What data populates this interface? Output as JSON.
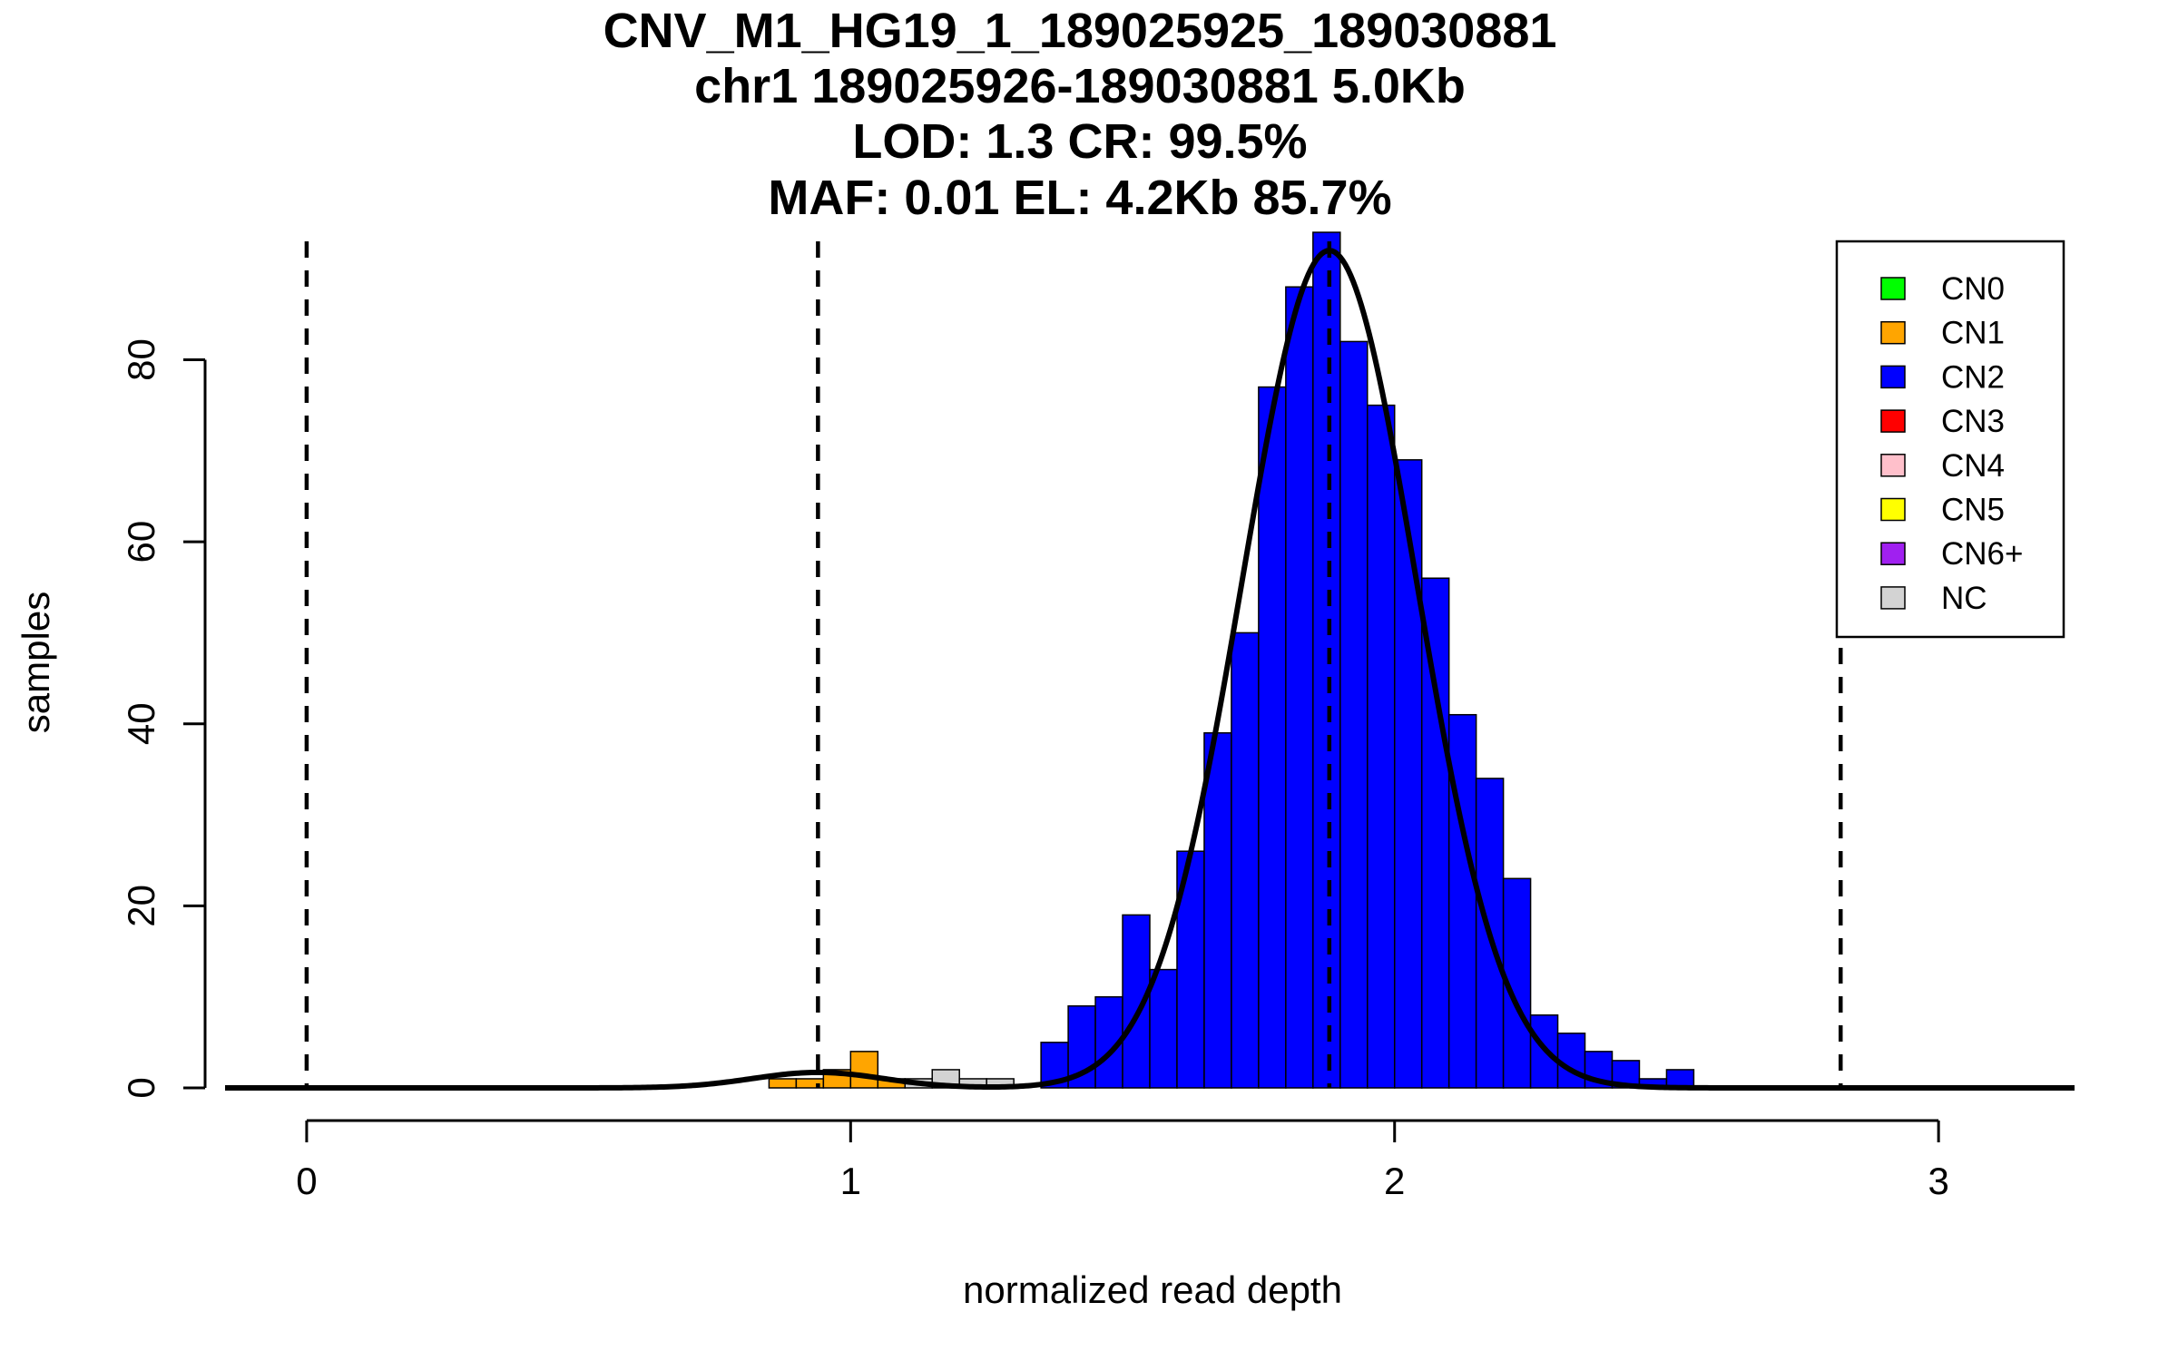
{
  "chart_data": {
    "type": "bar",
    "title_lines": [
      "CNV_M1_HG19_1_189025925_189030881",
      "chr1 189025926-189030881 5.0Kb",
      "LOD: 1.3 CR: 99.5%",
      "MAF: 0.01 EL: 4.2Kb 85.7%"
    ],
    "xlabel": "normalized read depth",
    "ylabel": "samples",
    "xlim": [
      -0.15,
      3.25
    ],
    "ylim": [
      0,
      95
    ],
    "x_ticks": [
      0,
      1,
      2,
      3
    ],
    "x_tick_labels": [
      "0",
      "1",
      "2",
      "3"
    ],
    "y_ticks": [
      0,
      20,
      40,
      60,
      80
    ],
    "y_tick_labels": [
      "0",
      "20",
      "40",
      "60",
      "80"
    ],
    "bin_width": 0.05,
    "bins": [
      {
        "x0": 0.85,
        "x1": 0.9,
        "count": 1,
        "cls": "CN1"
      },
      {
        "x0": 0.9,
        "x1": 0.95,
        "count": 1,
        "cls": "CN1"
      },
      {
        "x0": 0.95,
        "x1": 1.0,
        "count": 2,
        "cls": "CN1"
      },
      {
        "x0": 1.0,
        "x1": 1.05,
        "count": 4,
        "cls": "CN1"
      },
      {
        "x0": 1.05,
        "x1": 1.1,
        "count": 1,
        "cls": "CN1"
      },
      {
        "x0": 1.1,
        "x1": 1.15,
        "count": 1,
        "cls": "NC"
      },
      {
        "x0": 1.15,
        "x1": 1.2,
        "count": 2,
        "cls": "NC"
      },
      {
        "x0": 1.2,
        "x1": 1.25,
        "count": 1,
        "cls": "NC"
      },
      {
        "x0": 1.25,
        "x1": 1.3,
        "count": 1,
        "cls": "NC"
      },
      {
        "x0": 1.35,
        "x1": 1.4,
        "count": 5,
        "cls": "CN2"
      },
      {
        "x0": 1.4,
        "x1": 1.45,
        "count": 9,
        "cls": "CN2"
      },
      {
        "x0": 1.45,
        "x1": 1.5,
        "count": 10,
        "cls": "CN2"
      },
      {
        "x0": 1.5,
        "x1": 1.55,
        "count": 19,
        "cls": "CN2"
      },
      {
        "x0": 1.55,
        "x1": 1.6,
        "count": 13,
        "cls": "CN2"
      },
      {
        "x0": 1.6,
        "x1": 1.65,
        "count": 26,
        "cls": "CN2"
      },
      {
        "x0": 1.65,
        "x1": 1.7,
        "count": 39,
        "cls": "CN2"
      },
      {
        "x0": 1.7,
        "x1": 1.75,
        "count": 50,
        "cls": "CN2"
      },
      {
        "x0": 1.75,
        "x1": 1.8,
        "count": 77,
        "cls": "CN2"
      },
      {
        "x0": 1.8,
        "x1": 1.85,
        "count": 88,
        "cls": "CN2"
      },
      {
        "x0": 1.85,
        "x1": 1.9,
        "count": 94,
        "cls": "CN2"
      },
      {
        "x0": 1.9,
        "x1": 1.95,
        "count": 82,
        "cls": "CN2"
      },
      {
        "x0": 1.95,
        "x1": 2.0,
        "count": 75,
        "cls": "CN2"
      },
      {
        "x0": 2.0,
        "x1": 2.05,
        "count": 69,
        "cls": "CN2"
      },
      {
        "x0": 2.05,
        "x1": 2.1,
        "count": 56,
        "cls": "CN2"
      },
      {
        "x0": 2.1,
        "x1": 2.15,
        "count": 41,
        "cls": "CN2"
      },
      {
        "x0": 2.15,
        "x1": 2.2,
        "count": 34,
        "cls": "CN2"
      },
      {
        "x0": 2.2,
        "x1": 2.25,
        "count": 23,
        "cls": "CN2"
      },
      {
        "x0": 2.25,
        "x1": 2.3,
        "count": 8,
        "cls": "CN2"
      },
      {
        "x0": 2.3,
        "x1": 2.35,
        "count": 6,
        "cls": "CN2"
      },
      {
        "x0": 2.35,
        "x1": 2.4,
        "count": 4,
        "cls": "CN2"
      },
      {
        "x0": 2.4,
        "x1": 2.45,
        "count": 3,
        "cls": "CN2"
      },
      {
        "x0": 2.45,
        "x1": 2.5,
        "count": 1,
        "cls": "CN2"
      },
      {
        "x0": 2.5,
        "x1": 2.55,
        "count": 2,
        "cls": "CN2"
      }
    ],
    "density_components": [
      {
        "mean": 0.94,
        "sd": 0.12,
        "peak": 1.7
      },
      {
        "mean": 1.88,
        "sd": 0.16,
        "peak": 92
      }
    ],
    "density_x_range": [
      -0.15,
      3.25
    ],
    "vlines_dashed": [
      0.0,
      0.94,
      1.88,
      2.82
    ],
    "legend_position": "top-right",
    "legend": [
      {
        "label": "CN0",
        "color": "#00ff00"
      },
      {
        "label": "CN1",
        "color": "#ffa500"
      },
      {
        "label": "CN2",
        "color": "#0000ff"
      },
      {
        "label": "CN3",
        "color": "#ff0000"
      },
      {
        "label": "CN4",
        "color": "#ffc0cb"
      },
      {
        "label": "CN5",
        "color": "#ffff00"
      },
      {
        "label": "CN6+",
        "color": "#a020f0"
      },
      {
        "label": "NC",
        "color": "#d3d3d3"
      }
    ],
    "class_colors": {
      "CN0": "#00ff00",
      "CN1": "#ffa500",
      "CN2": "#0000ff",
      "CN3": "#ff0000",
      "CN4": "#ffc0cb",
      "CN5": "#ffff00",
      "CN6+": "#a020f0",
      "NC": "#d3d3d3"
    }
  }
}
